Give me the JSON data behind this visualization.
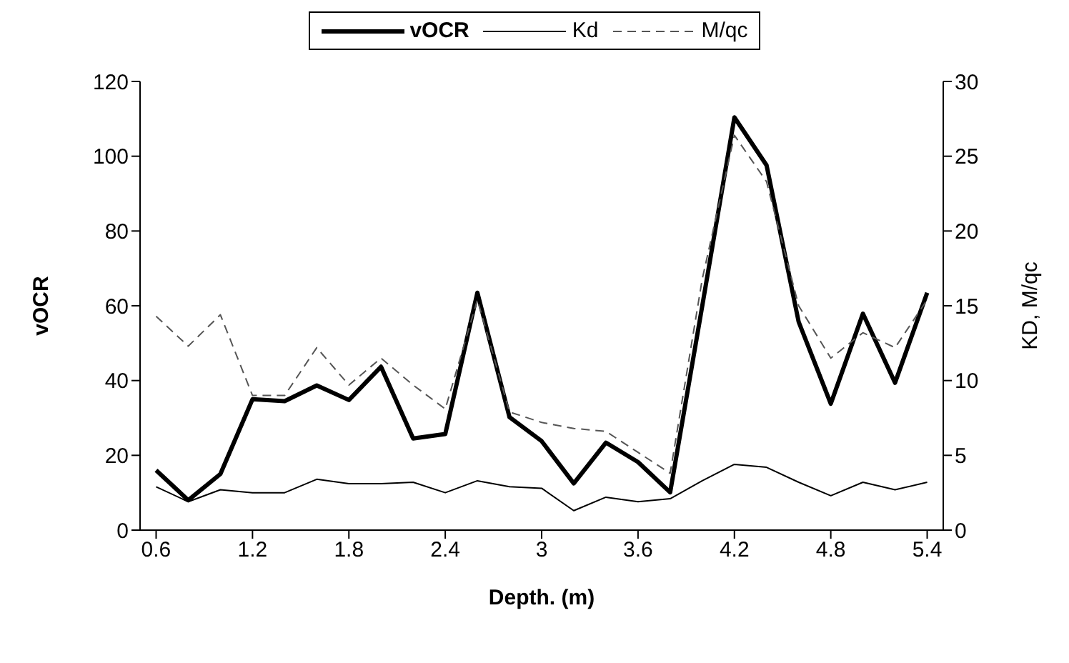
{
  "chart_data": {
    "type": "line",
    "xlabel": "Depth. (m)",
    "ylabel": "vOCR",
    "y2label": "KD, M/qc",
    "x": [
      0.6,
      0.8,
      1.0,
      1.2,
      1.4,
      1.6,
      1.8,
      2.0,
      2.2,
      2.4,
      2.6,
      2.8,
      3.0,
      3.2,
      3.4,
      3.6,
      3.8,
      4.0,
      4.2,
      4.4,
      4.6,
      4.8,
      5.0,
      5.2,
      5.4
    ],
    "xlim": [
      0.5,
      5.5
    ],
    "xticks": [
      0.6,
      1.2,
      1.8,
      2.4,
      3,
      3.6,
      4.2,
      4.8,
      5.4
    ],
    "ylim": [
      0,
      120
    ],
    "yticks": [
      0,
      20,
      40,
      60,
      80,
      100,
      120
    ],
    "y2lim": [
      0,
      30
    ],
    "y2ticks": [
      0,
      5,
      10,
      15,
      20,
      25,
      30
    ],
    "series": [
      {
        "name": "vOCR",
        "color": "#000000",
        "line_style": "solid",
        "values": [
          16,
          8,
          15,
          35,
          34.5,
          38.7,
          34.8,
          43.7,
          24.5,
          25.7,
          63.5,
          30.2,
          23.8,
          12.5,
          23.4,
          18.2,
          10.1,
          60,
          110.4,
          97.6,
          55.7,
          33.8,
          57.9,
          39.4,
          63.5
        ]
      },
      {
        "name": "Kd",
        "color": "#000000",
        "line_style": "solid",
        "axis": "y2",
        "values": [
          2.9,
          1.9,
          2.7,
          2.5,
          2.5,
          3.4,
          3.1,
          3.1,
          3.2,
          2.5,
          3.3,
          2.9,
          2.8,
          1.3,
          2.2,
          1.9,
          2.1,
          3.3,
          4.4,
          4.2,
          3.2,
          2.3,
          3.2,
          2.7,
          3.2
        ]
      },
      {
        "name": "M/qc",
        "color": "#555555",
        "line_style": "dashed",
        "axis": "y2",
        "values": [
          14.3,
          12.3,
          14.4,
          9,
          9,
          12.2,
          9.7,
          11.5,
          9.7,
          8.1,
          15.4,
          7.9,
          7.2,
          6.8,
          6.6,
          5.2,
          3.8,
          16.8,
          26.4,
          23.3,
          15,
          11.5,
          13.2,
          12.2,
          15.4
        ]
      }
    ],
    "grid": false,
    "legend": "top",
    "marker": "none"
  }
}
